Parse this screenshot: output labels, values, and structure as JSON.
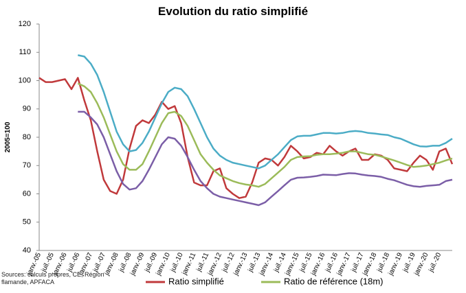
{
  "chart_data": {
    "type": "line",
    "title": "Evolution du ratio simplifié",
    "y_label": "2005=100",
    "source": "Sources: calculs propres, CE, Région flamande, APFACA",
    "categories": [
      "janv.-05",
      null,
      "juil.-05",
      null,
      "janv.-06",
      null,
      "juil.-06",
      null,
      "janv.-07",
      null,
      "juil.-07",
      null,
      "janv.-08",
      null,
      "juil.-08",
      null,
      "janv.-09",
      null,
      "juil.-09",
      null,
      "janv.-10",
      null,
      "juil.-10",
      null,
      "janv.-11",
      null,
      "juil.-11",
      null,
      "janv.-12",
      null,
      "juil.-12",
      null,
      "janv.-13",
      null,
      "juil.-13",
      null,
      "janv.-14",
      null,
      "juil.-14",
      null,
      "janv.-15",
      null,
      "juil.-15",
      null,
      "janv.-16",
      null,
      "juil.-16",
      null,
      "janv.-17",
      null,
      "juil.-17",
      null,
      "janv.-18",
      null,
      "juil.-18",
      null,
      "janv.-19",
      null,
      "juil.-19",
      null,
      "janv.-20",
      null,
      "juil.-20",
      null,
      null
    ],
    "series": [
      {
        "name": "Ratio simplifié",
        "color": "#c0393b",
        "values": [
          101,
          99.5,
          99.5,
          100,
          100.5,
          97,
          101,
          93,
          86,
          75,
          65,
          61,
          60,
          65,
          76,
          84,
          86,
          85,
          88,
          92.5,
          90,
          91,
          85,
          73,
          64,
          63,
          63,
          68,
          69,
          62,
          60,
          58.5,
          59,
          64,
          71,
          72.5,
          72,
          70,
          73,
          77,
          75,
          72.5,
          73,
          74.5,
          74,
          77,
          75,
          73.5,
          75,
          76,
          72,
          72,
          74,
          73.5,
          72,
          69,
          68.5,
          68,
          71,
          73.5,
          72,
          68.5,
          75,
          76,
          70.5
        ]
      },
      {
        "color": "#4bacc6",
        "values": [
          null,
          null,
          null,
          null,
          null,
          null,
          109,
          108.5,
          106,
          102,
          96,
          89,
          82,
          77.5,
          75,
          75.5,
          78,
          82,
          87,
          92,
          96,
          97.5,
          97,
          94.5,
          90,
          85,
          80,
          76,
          73.5,
          72,
          71,
          70.5,
          70,
          69.5,
          69,
          70,
          72,
          74,
          76.5,
          79,
          80.3,
          80.5,
          80.5,
          81,
          81.5,
          81.5,
          81.3,
          81.5,
          82,
          82.2,
          82,
          81.5,
          81.3,
          81,
          80.8,
          80,
          79.5,
          78.5,
          77.5,
          76.8,
          76.7,
          77,
          77,
          78,
          79.5
        ]
      },
      {
        "name": "Ratio de référence (18m)",
        "color": "#9bbb59",
        "values": [
          null,
          null,
          null,
          null,
          null,
          null,
          99,
          98,
          96,
          92,
          87,
          81,
          75,
          70.5,
          68.5,
          68.5,
          70.5,
          75,
          80,
          85,
          88.5,
          89,
          87.5,
          84,
          79,
          74,
          71,
          68.5,
          66.5,
          65.5,
          64.5,
          63.8,
          63.3,
          63,
          62.5,
          63.5,
          65.5,
          67.5,
          69.5,
          72,
          73,
          73.2,
          73.3,
          73.8,
          74,
          74,
          74.2,
          74.5,
          75,
          75,
          74.5,
          74,
          73.8,
          73.2,
          72.5,
          71.8,
          71,
          70.2,
          69.5,
          69.7,
          70,
          70.5,
          71,
          71.8,
          72.5
        ]
      },
      {
        "color": "#7b5ea7",
        "values": [
          null,
          null,
          null,
          null,
          null,
          null,
          89,
          89,
          87,
          84.5,
          80,
          74,
          68,
          63.5,
          61.5,
          62,
          64.5,
          68.5,
          73,
          77.5,
          80,
          79.5,
          77,
          73,
          68.5,
          64.5,
          62,
          60,
          59,
          58.5,
          58,
          57.5,
          57,
          56.5,
          56,
          57,
          59,
          61,
          63,
          65,
          65.7,
          65.8,
          66,
          66.3,
          66.8,
          66.7,
          66.6,
          67,
          67.3,
          67.2,
          66.8,
          66.5,
          66.3,
          66,
          65.3,
          64.8,
          64,
          63.2,
          62.7,
          62.5,
          62.8,
          63,
          63.2,
          64.5,
          65
        ]
      }
    ],
    "ylim": [
      40,
      120
    ],
    "yticks": [
      40,
      50,
      60,
      70,
      80,
      90,
      100,
      110,
      120
    ],
    "grid": false,
    "legend": "bottom"
  }
}
